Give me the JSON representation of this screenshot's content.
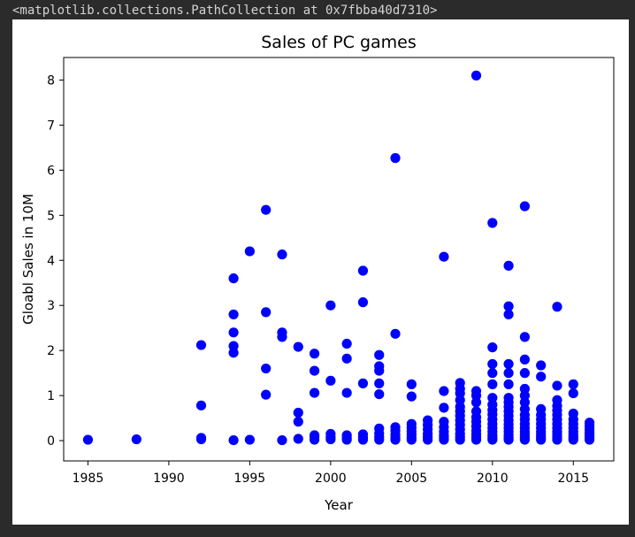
{
  "output_text": "<matplotlib.collections.PathCollection at 0x7fbba40d7310>",
  "chart_data": {
    "type": "scatter",
    "title": "Sales of PC games",
    "xlabel": "Year",
    "ylabel": "Gloabl Sales in 10M",
    "xlim": [
      1983.5,
      2017.5
    ],
    "ylim": [
      -0.45,
      8.5
    ],
    "xticks": [
      1985,
      1990,
      1995,
      2000,
      2005,
      2010,
      2015
    ],
    "yticks": [
      0,
      1,
      2,
      3,
      4,
      5,
      6,
      7,
      8
    ],
    "marker_color": "#0000ff",
    "grid": false,
    "points": [
      [
        1985,
        0.02
      ],
      [
        1988,
        0.03
      ],
      [
        1992,
        0.03
      ],
      [
        1992,
        0.06
      ],
      [
        1992,
        0.78
      ],
      [
        1992,
        2.12
      ],
      [
        1994,
        0.01
      ],
      [
        1994,
        1.95
      ],
      [
        1994,
        2.1
      ],
      [
        1994,
        2.4
      ],
      [
        1994,
        2.8
      ],
      [
        1994,
        3.6
      ],
      [
        1995,
        0.02
      ],
      [
        1995,
        4.2
      ],
      [
        1996,
        1.02
      ],
      [
        1996,
        1.6
      ],
      [
        1996,
        2.85
      ],
      [
        1996,
        5.12
      ],
      [
        1997,
        0.01
      ],
      [
        1997,
        2.3
      ],
      [
        1997,
        2.4
      ],
      [
        1997,
        4.13
      ],
      [
        1998,
        0.04
      ],
      [
        1998,
        0.42
      ],
      [
        1998,
        0.62
      ],
      [
        1998,
        2.08
      ],
      [
        1999,
        0.02
      ],
      [
        1999,
        0.08
      ],
      [
        1999,
        0.12
      ],
      [
        1999,
        1.06
      ],
      [
        1999,
        1.55
      ],
      [
        1999,
        1.93
      ],
      [
        2000,
        0.03
      ],
      [
        2000,
        0.08
      ],
      [
        2000,
        0.15
      ],
      [
        2000,
        1.33
      ],
      [
        2000,
        3.0
      ],
      [
        2001,
        0.02
      ],
      [
        2001,
        0.06
      ],
      [
        2001,
        0.12
      ],
      [
        2001,
        1.06
      ],
      [
        2001,
        1.82
      ],
      [
        2001,
        2.15
      ],
      [
        2002,
        0.02
      ],
      [
        2002,
        0.07
      ],
      [
        2002,
        0.14
      ],
      [
        2002,
        1.27
      ],
      [
        2002,
        3.07
      ],
      [
        2002,
        3.77
      ],
      [
        2003,
        0.02
      ],
      [
        2003,
        0.08
      ],
      [
        2003,
        0.16
      ],
      [
        2003,
        0.27
      ],
      [
        2003,
        1.03
      ],
      [
        2003,
        1.27
      ],
      [
        2003,
        1.55
      ],
      [
        2003,
        1.65
      ],
      [
        2003,
        1.9
      ],
      [
        2004,
        0.02
      ],
      [
        2004,
        0.06
      ],
      [
        2004,
        0.13
      ],
      [
        2004,
        0.22
      ],
      [
        2004,
        0.3
      ],
      [
        2004,
        2.37
      ],
      [
        2004,
        6.27
      ],
      [
        2005,
        0.02
      ],
      [
        2005,
        0.07
      ],
      [
        2005,
        0.14
      ],
      [
        2005,
        0.21
      ],
      [
        2005,
        0.29
      ],
      [
        2005,
        0.37
      ],
      [
        2005,
        0.98
      ],
      [
        2005,
        1.25
      ],
      [
        2006,
        0.02
      ],
      [
        2006,
        0.08
      ],
      [
        2006,
        0.15
      ],
      [
        2006,
        0.25
      ],
      [
        2006,
        0.35
      ],
      [
        2006,
        0.45
      ],
      [
        2007,
        0.02
      ],
      [
        2007,
        0.07
      ],
      [
        2007,
        0.12
      ],
      [
        2007,
        0.2
      ],
      [
        2007,
        0.3
      ],
      [
        2007,
        0.42
      ],
      [
        2007,
        0.73
      ],
      [
        2007,
        1.1
      ],
      [
        2007,
        4.08
      ],
      [
        2008,
        0.02
      ],
      [
        2008,
        0.08
      ],
      [
        2008,
        0.15
      ],
      [
        2008,
        0.25
      ],
      [
        2008,
        0.35
      ],
      [
        2008,
        0.45
      ],
      [
        2008,
        0.55
      ],
      [
        2008,
        0.65
      ],
      [
        2008,
        0.75
      ],
      [
        2008,
        0.9
      ],
      [
        2008,
        1.05
      ],
      [
        2008,
        1.15
      ],
      [
        2008,
        1.28
      ],
      [
        2009,
        0.02
      ],
      [
        2009,
        0.07
      ],
      [
        2009,
        0.14
      ],
      [
        2009,
        0.22
      ],
      [
        2009,
        0.32
      ],
      [
        2009,
        0.42
      ],
      [
        2009,
        0.52
      ],
      [
        2009,
        0.65
      ],
      [
        2009,
        0.85
      ],
      [
        2009,
        1.0
      ],
      [
        2009,
        1.1
      ],
      [
        2009,
        8.1
      ],
      [
        2010,
        0.02
      ],
      [
        2010,
        0.06
      ],
      [
        2010,
        0.12
      ],
      [
        2010,
        0.2
      ],
      [
        2010,
        0.28
      ],
      [
        2010,
        0.37
      ],
      [
        2010,
        0.47
      ],
      [
        2010,
        0.58
      ],
      [
        2010,
        0.68
      ],
      [
        2010,
        0.8
      ],
      [
        2010,
        0.95
      ],
      [
        2010,
        1.25
      ],
      [
        2010,
        1.5
      ],
      [
        2010,
        1.7
      ],
      [
        2010,
        2.07
      ],
      [
        2010,
        4.83
      ],
      [
        2011,
        0.02
      ],
      [
        2011,
        0.06
      ],
      [
        2011,
        0.12
      ],
      [
        2011,
        0.2
      ],
      [
        2011,
        0.28
      ],
      [
        2011,
        0.36
      ],
      [
        2011,
        0.45
      ],
      [
        2011,
        0.55
      ],
      [
        2011,
        0.65
      ],
      [
        2011,
        0.75
      ],
      [
        2011,
        0.85
      ],
      [
        2011,
        0.95
      ],
      [
        2011,
        1.25
      ],
      [
        2011,
        1.5
      ],
      [
        2011,
        1.7
      ],
      [
        2011,
        2.8
      ],
      [
        2011,
        2.98
      ],
      [
        2011,
        3.88
      ],
      [
        2012,
        0.02
      ],
      [
        2012,
        0.07
      ],
      [
        2012,
        0.13
      ],
      [
        2012,
        0.2
      ],
      [
        2012,
        0.28
      ],
      [
        2012,
        0.37
      ],
      [
        2012,
        0.47
      ],
      [
        2012,
        0.57
      ],
      [
        2012,
        0.7
      ],
      [
        2012,
        0.85
      ],
      [
        2012,
        1.0
      ],
      [
        2012,
        1.15
      ],
      [
        2012,
        1.5
      ],
      [
        2012,
        1.8
      ],
      [
        2012,
        2.3
      ],
      [
        2012,
        5.2
      ],
      [
        2013,
        0.02
      ],
      [
        2013,
        0.07
      ],
      [
        2013,
        0.13
      ],
      [
        2013,
        0.2
      ],
      [
        2013,
        0.28
      ],
      [
        2013,
        0.37
      ],
      [
        2013,
        0.47
      ],
      [
        2013,
        0.57
      ],
      [
        2013,
        0.7
      ],
      [
        2013,
        1.42
      ],
      [
        2013,
        1.67
      ],
      [
        2014,
        0.02
      ],
      [
        2014,
        0.07
      ],
      [
        2014,
        0.13
      ],
      [
        2014,
        0.2
      ],
      [
        2014,
        0.28
      ],
      [
        2014,
        0.37
      ],
      [
        2014,
        0.47
      ],
      [
        2014,
        0.57
      ],
      [
        2014,
        0.67
      ],
      [
        2014,
        0.77
      ],
      [
        2014,
        0.9
      ],
      [
        2014,
        1.22
      ],
      [
        2014,
        2.97
      ],
      [
        2015,
        0.02
      ],
      [
        2015,
        0.07
      ],
      [
        2015,
        0.13
      ],
      [
        2015,
        0.2
      ],
      [
        2015,
        0.28
      ],
      [
        2015,
        0.37
      ],
      [
        2015,
        0.47
      ],
      [
        2015,
        0.6
      ],
      [
        2015,
        1.05
      ],
      [
        2015,
        1.25
      ],
      [
        2016,
        0.02
      ],
      [
        2016,
        0.06
      ],
      [
        2016,
        0.12
      ],
      [
        2016,
        0.18
      ],
      [
        2016,
        0.25
      ],
      [
        2016,
        0.32
      ],
      [
        2016,
        0.4
      ]
    ]
  }
}
